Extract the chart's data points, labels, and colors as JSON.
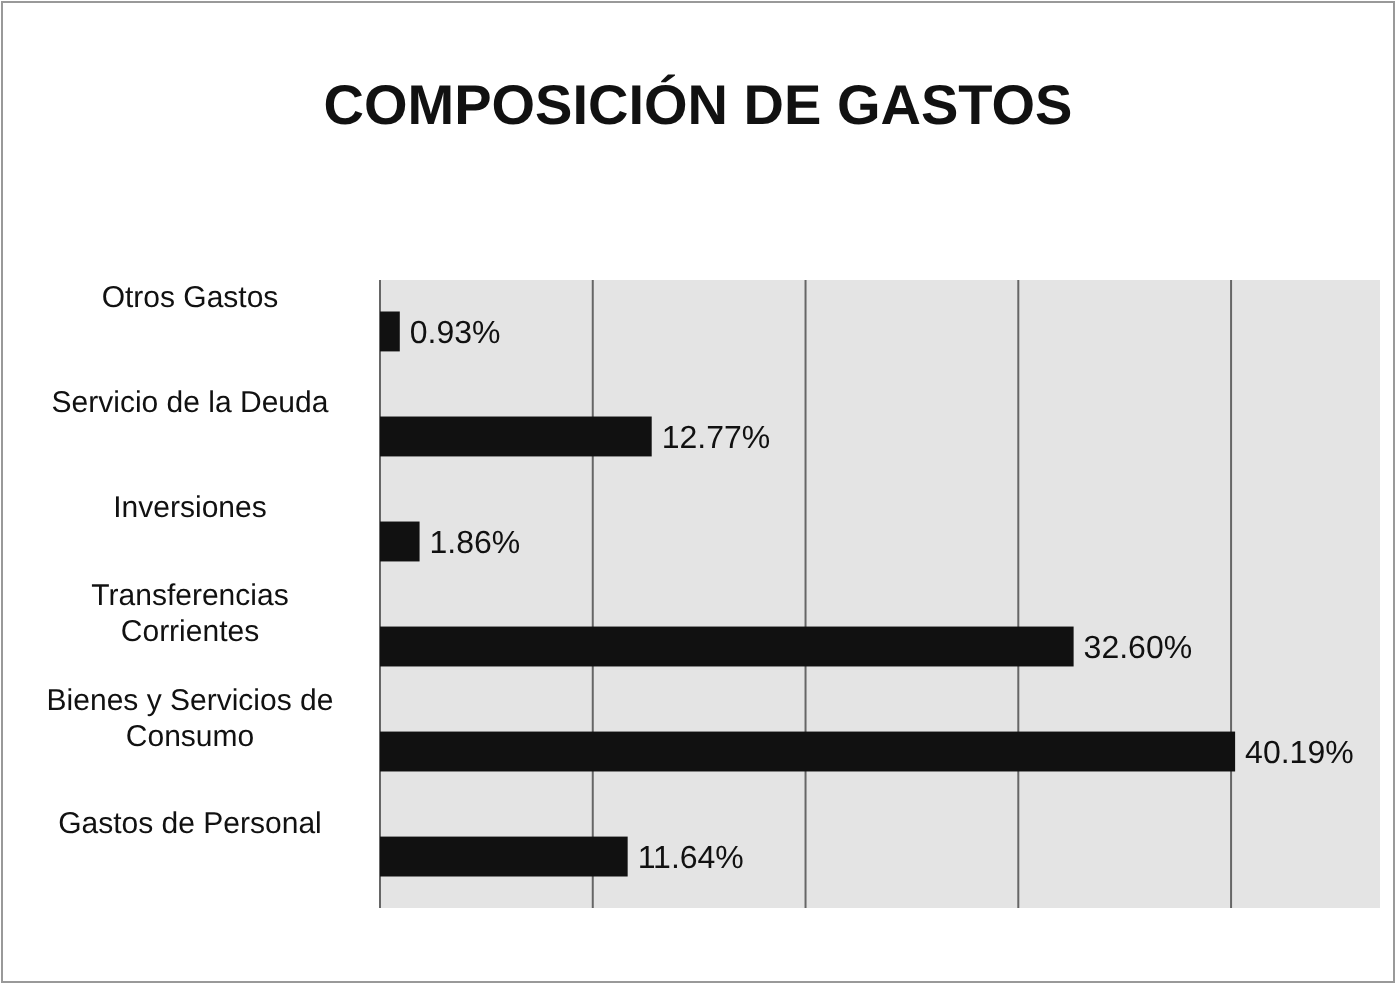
{
  "chart_data": {
    "type": "bar",
    "title": "COMPOSICIÓN DE GASTOS",
    "orientation": "horizontal",
    "categories": [
      "Otros Gastos",
      "Servicio de la Deuda",
      "Inversiones",
      "Transferencias Corrientes",
      "Bienes y Servicios de Consumo",
      "Gastos de Personal"
    ],
    "values": [
      0.93,
      12.77,
      1.86,
      32.6,
      40.19,
      11.64
    ],
    "value_labels": [
      "0.93%",
      "12.77%",
      "1.86%",
      "32.60%",
      "40.19%",
      "11.64%"
    ],
    "color": "#111111",
    "xlim": [
      0,
      47
    ],
    "xticks": [
      {
        "value": 0,
        "label": null
      },
      {
        "value": 10,
        "label": null
      },
      {
        "value": 20,
        "label": null
      },
      {
        "value": 30,
        "label": null
      },
      {
        "value": 40,
        "label": null
      }
    ],
    "grid": "x",
    "tick_labels": "y"
  }
}
